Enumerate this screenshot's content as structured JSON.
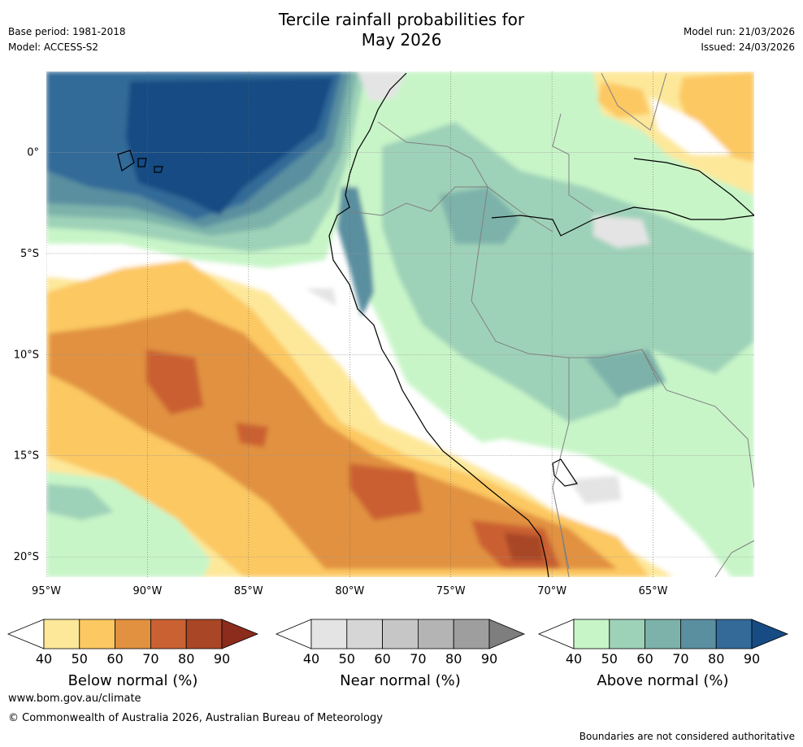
{
  "header": {
    "title_line1": "Tercile rainfall probabilities for",
    "title_line2": "May 2026",
    "base_period": "Base period: 1981-2018",
    "model": "Model: ACCESS-S2",
    "model_run": "Model run: 21/03/2026",
    "issued": "Issued: 24/03/2026"
  },
  "map": {
    "lat_labels": [
      "0°",
      "5°S",
      "10°S",
      "15°S",
      "20°S"
    ],
    "lon_labels": [
      "95°W",
      "90°W",
      "85°W",
      "80°W",
      "75°W",
      "70°W",
      "65°W"
    ],
    "grid_lats": [
      0,
      -5,
      -10,
      -15,
      -20
    ],
    "grid_lons": [
      -95,
      -90,
      -85,
      -80,
      -75,
      -70,
      -65
    ],
    "lat_range": [
      -21,
      4
    ],
    "lon_range": [
      -95,
      -60
    ],
    "features": [
      {
        "name": "below-normal-coast-high",
        "category": "below",
        "level": 80,
        "lon": -72,
        "lat": -19
      },
      {
        "name": "below-normal-ocean-high",
        "category": "below",
        "level": 80,
        "lon": -88,
        "lat": -12
      },
      {
        "name": "above-normal-galapagos",
        "category": "above",
        "level": 90,
        "lon": -87,
        "lat": 1
      },
      {
        "name": "near-normal-offshore",
        "category": "near",
        "level": 50,
        "lon": -82,
        "lat": -8
      },
      {
        "name": "above-normal-amazon",
        "category": "above",
        "level": 60,
        "lon": -68,
        "lat": -8
      }
    ]
  },
  "colorbars": [
    {
      "title": "Below normal (%)",
      "ticks": [
        "40",
        "50",
        "60",
        "70",
        "80",
        "90"
      ],
      "colors": [
        "#ffffff",
        "#fde89a",
        "#fcc862",
        "#e1913f",
        "#ca6132",
        "#a84626",
        "#8c2c1c"
      ]
    },
    {
      "title": "Near normal (%)",
      "ticks": [
        "40",
        "50",
        "60",
        "70",
        "80",
        "90"
      ],
      "colors": [
        "#ffffff",
        "#e4e4e4",
        "#d6d6d6",
        "#c6c6c6",
        "#b4b4b4",
        "#9e9e9e",
        "#7e7e7e"
      ]
    },
    {
      "title": "Above normal (%)",
      "ticks": [
        "40",
        "50",
        "60",
        "70",
        "80",
        "90"
      ],
      "colors": [
        "#ffffff",
        "#c8f5c8",
        "#9ed2b8",
        "#7cb2aa",
        "#5a8fa0",
        "#336a98",
        "#164c83"
      ]
    }
  ],
  "footer": {
    "website": "www.bom.gov.au/climate",
    "copyright": "© Commonwealth of Australia 2026, Australian Bureau of Meteorology",
    "disclaimer": "Boundaries are not considered authoritative"
  }
}
